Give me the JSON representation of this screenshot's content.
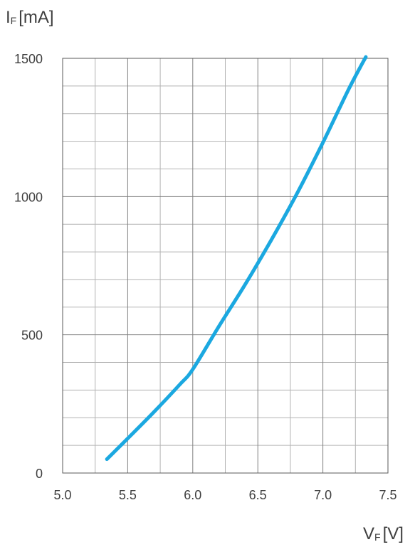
{
  "chart_data": {
    "type": "line",
    "title": "",
    "ylabel": {
      "symbol": "I",
      "sub": "F",
      "unit": "[mA]"
    },
    "xlabel": {
      "symbol": "V",
      "sub": "F",
      "unit": "[V]"
    },
    "xlim": [
      5.0,
      7.5
    ],
    "ylim": [
      0,
      1500
    ],
    "x_ticks": [
      5.0,
      5.5,
      6.0,
      6.5,
      7.0,
      7.5
    ],
    "x_tick_labels": [
      "5.0",
      "5.5",
      "6.0",
      "6.5",
      "7.0",
      "7.5"
    ],
    "y_ticks": [
      0,
      500,
      1000,
      1500
    ],
    "y_tick_labels": [
      "0",
      "500",
      "1000",
      "1500"
    ],
    "x_minor_step": 0.25,
    "y_minor_step": 100,
    "grid": true,
    "line_color": "#1ba8e0",
    "series": [
      {
        "name": "",
        "x": [
          5.34,
          5.5,
          5.7,
          5.9,
          6.0,
          6.2,
          6.4,
          6.6,
          6.8,
          7.0,
          7.2,
          7.33
        ],
        "y": [
          50,
          125,
          220,
          320,
          375,
          530,
          680,
          840,
          1010,
          1195,
          1390,
          1505
        ]
      }
    ]
  }
}
